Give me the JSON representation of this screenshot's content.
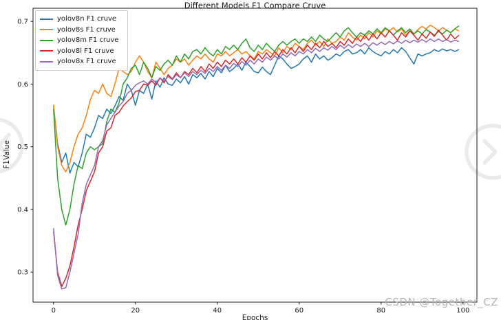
{
  "title": "Different Models F1 Compare Cruve",
  "watermark": {
    "text": "CSDN @Together_CZ"
  },
  "nav_arrows": {
    "left": "chevron-left",
    "right": "chevron-right",
    "color": "#ebebeb"
  },
  "axis_color": "#1a1a1a",
  "chart_data": {
    "type": "line",
    "title": "Different Models F1 Compare Cruve",
    "xlabel": "Epochs",
    "ylabel": "F1Value",
    "xlim": [
      -5,
      103.4
    ],
    "ylim": [
      0.252,
      0.721
    ],
    "grid": false,
    "legend_position": "upper left",
    "xticks": [
      0,
      20,
      40,
      60,
      80,
      100
    ],
    "xtick_labels": [
      "0",
      "20",
      "40",
      "60",
      "80",
      "100"
    ],
    "yticks": [
      0.3,
      0.4,
      0.5,
      0.6,
      0.7
    ],
    "ytick_labels": [
      "0.3",
      "0.4",
      "0.5",
      "0.6",
      "0.7"
    ],
    "x_range": [
      0,
      99
    ],
    "series": [
      {
        "name": "yolov8n F1 cruve",
        "color": "#1f77b4",
        "values": [
          0.565,
          0.505,
          0.475,
          0.49,
          0.458,
          0.475,
          0.468,
          0.49,
          0.52,
          0.515,
          0.53,
          0.55,
          0.545,
          0.56,
          0.553,
          0.565,
          0.58,
          0.574,
          0.6,
          0.59,
          0.566,
          0.59,
          0.585,
          0.6,
          0.576,
          0.605,
          0.595,
          0.61,
          0.6,
          0.598,
          0.608,
          0.602,
          0.612,
          0.6,
          0.615,
          0.61,
          0.617,
          0.608,
          0.62,
          0.612,
          0.625,
          0.618,
          0.63,
          0.62,
          0.625,
          0.632,
          0.622,
          0.635,
          0.628,
          0.62,
          0.618,
          0.627,
          0.62,
          0.615,
          0.63,
          0.645,
          0.64,
          0.632,
          0.625,
          0.628,
          0.632,
          0.64,
          0.645,
          0.635,
          0.648,
          0.64,
          0.645,
          0.638,
          0.642,
          0.648,
          0.645,
          0.652,
          0.655,
          0.648,
          0.65,
          0.655,
          0.648,
          0.658,
          0.652,
          0.648,
          0.645,
          0.652,
          0.648,
          0.655,
          0.65,
          0.658,
          0.652,
          0.642,
          0.632,
          0.648,
          0.645,
          0.648,
          0.65,
          0.655,
          0.652,
          0.656,
          0.653,
          0.655,
          0.652,
          0.655
        ]
      },
      {
        "name": "yolov8s F1 cruve",
        "color": "#ff7f0e",
        "values": [
          0.567,
          0.5,
          0.47,
          0.46,
          0.475,
          0.5,
          0.52,
          0.53,
          0.55,
          0.575,
          0.59,
          0.585,
          0.6,
          0.585,
          0.58,
          0.6,
          0.625,
          0.62,
          0.615,
          0.62,
          0.635,
          0.645,
          0.635,
          0.62,
          0.61,
          0.635,
          0.625,
          0.615,
          0.625,
          0.63,
          0.64,
          0.635,
          0.64,
          0.63,
          0.638,
          0.645,
          0.64,
          0.648,
          0.64,
          0.635,
          0.648,
          0.645,
          0.652,
          0.645,
          0.65,
          0.655,
          0.648,
          0.652,
          0.645,
          0.64,
          0.652,
          0.648,
          0.655,
          0.65,
          0.645,
          0.658,
          0.65,
          0.66,
          0.655,
          0.665,
          0.66,
          0.655,
          0.665,
          0.67,
          0.662,
          0.668,
          0.66,
          0.672,
          0.665,
          0.668,
          0.675,
          0.67,
          0.682,
          0.675,
          0.67,
          0.678,
          0.672,
          0.682,
          0.675,
          0.685,
          0.68,
          0.688,
          0.685,
          0.69,
          0.683,
          0.688,
          0.678,
          0.685,
          0.68,
          0.687,
          0.692,
          0.688,
          0.694,
          0.69,
          0.685,
          0.69,
          0.686,
          0.682,
          0.688,
          0.685
        ]
      },
      {
        "name": "yolov8m F1 cruve",
        "color": "#2ca02c",
        "values": [
          0.56,
          0.45,
          0.4,
          0.375,
          0.4,
          0.44,
          0.47,
          0.465,
          0.49,
          0.5,
          0.495,
          0.5,
          0.505,
          0.54,
          0.56,
          0.555,
          0.57,
          0.6,
          0.61,
          0.625,
          0.63,
          0.615,
          0.635,
          0.625,
          0.61,
          0.628,
          0.622,
          0.632,
          0.638,
          0.63,
          0.645,
          0.635,
          0.648,
          0.64,
          0.652,
          0.655,
          0.648,
          0.658,
          0.65,
          0.645,
          0.655,
          0.648,
          0.66,
          0.655,
          0.662,
          0.655,
          0.665,
          0.672,
          0.658,
          0.652,
          0.662,
          0.655,
          0.665,
          0.658,
          0.652,
          0.662,
          0.668,
          0.662,
          0.668,
          0.672,
          0.665,
          0.672,
          0.668,
          0.675,
          0.668,
          0.678,
          0.672,
          0.668,
          0.675,
          0.682,
          0.675,
          0.685,
          0.69,
          0.682,
          0.675,
          0.682,
          0.678,
          0.685,
          0.68,
          0.688,
          0.682,
          0.69,
          0.685,
          0.678,
          0.685,
          0.69,
          0.682,
          0.688,
          0.68,
          0.685,
          0.68,
          0.687,
          0.683,
          0.678,
          0.684,
          0.68,
          0.686,
          0.682,
          0.688,
          0.693
        ]
      },
      {
        "name": "yolov8l F1 cruve",
        "color": "#d62728",
        "values": [
          0.365,
          0.3,
          0.277,
          0.29,
          0.31,
          0.34,
          0.375,
          0.4,
          0.43,
          0.445,
          0.46,
          0.49,
          0.5,
          0.525,
          0.53,
          0.55,
          0.555,
          0.565,
          0.572,
          0.578,
          0.588,
          0.59,
          0.6,
          0.598,
          0.605,
          0.598,
          0.61,
          0.602,
          0.615,
          0.608,
          0.618,
          0.61,
          0.62,
          0.615,
          0.625,
          0.618,
          0.628,
          0.62,
          0.632,
          0.625,
          0.635,
          0.628,
          0.638,
          0.632,
          0.64,
          0.632,
          0.642,
          0.635,
          0.645,
          0.638,
          0.648,
          0.64,
          0.65,
          0.642,
          0.652,
          0.645,
          0.655,
          0.648,
          0.658,
          0.65,
          0.66,
          0.652,
          0.662,
          0.655,
          0.665,
          0.658,
          0.668,
          0.66,
          0.665,
          0.658,
          0.668,
          0.662,
          0.672,
          0.665,
          0.675,
          0.668,
          0.678,
          0.67,
          0.68,
          0.672,
          0.682,
          0.675,
          0.685,
          0.678,
          0.67,
          0.682,
          0.675,
          0.685,
          0.678,
          0.67,
          0.68,
          0.673,
          0.683,
          0.676,
          0.686,
          0.678,
          0.67,
          0.68,
          0.672,
          0.678
        ]
      },
      {
        "name": "yolov8x F1 cruve",
        "color": "#9467bd",
        "values": [
          0.37,
          0.295,
          0.273,
          0.275,
          0.3,
          0.33,
          0.36,
          0.41,
          0.44,
          0.455,
          0.47,
          0.5,
          0.51,
          0.535,
          0.545,
          0.555,
          0.565,
          0.572,
          0.585,
          0.59,
          0.598,
          0.602,
          0.605,
          0.6,
          0.608,
          0.602,
          0.61,
          0.605,
          0.612,
          0.607,
          0.615,
          0.61,
          0.618,
          0.612,
          0.62,
          0.615,
          0.622,
          0.617,
          0.625,
          0.62,
          0.628,
          0.622,
          0.63,
          0.625,
          0.633,
          0.628,
          0.636,
          0.63,
          0.638,
          0.632,
          0.64,
          0.635,
          0.643,
          0.638,
          0.645,
          0.64,
          0.648,
          0.643,
          0.65,
          0.645,
          0.652,
          0.648,
          0.655,
          0.65,
          0.657,
          0.652,
          0.658,
          0.654,
          0.66,
          0.655,
          0.662,
          0.657,
          0.663,
          0.658,
          0.664,
          0.66,
          0.665,
          0.66,
          0.666,
          0.662,
          0.667,
          0.663,
          0.668,
          0.664,
          0.669,
          0.665,
          0.67,
          0.666,
          0.67,
          0.667,
          0.671,
          0.667,
          0.672,
          0.668,
          0.672,
          0.668,
          0.671,
          0.667,
          0.67,
          0.668
        ]
      }
    ]
  }
}
